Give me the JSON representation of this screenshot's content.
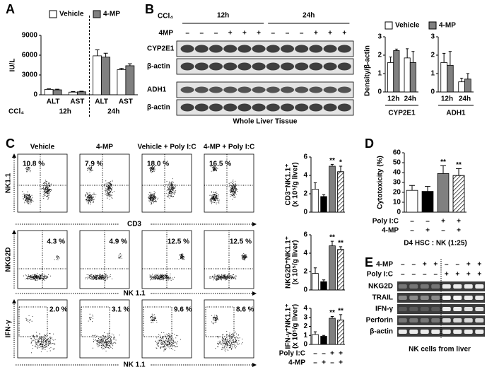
{
  "panels": [
    "A",
    "B",
    "C",
    "D",
    "E"
  ],
  "chart_data": [
    {
      "type": "bar",
      "y_label": "IU/L",
      "categories": [
        "ALT",
        "AST",
        "ALT",
        "AST"
      ],
      "group_labels": [
        "12h",
        "24h"
      ],
      "x_prefix": "CCl₄",
      "ylim": [
        0,
        9000
      ],
      "yticks": [
        0,
        3000,
        6000,
        9000
      ],
      "series": [
        {
          "name": "Vehicle",
          "color": "#ffffff",
          "values": [
            800,
            400,
            5900,
            3800
          ],
          "errors": [
            100,
            80,
            900,
            200
          ]
        },
        {
          "name": "4-MP",
          "color": "#808080",
          "values": [
            750,
            450,
            5700,
            4400
          ],
          "errors": [
            100,
            80,
            600,
            300
          ]
        }
      ]
    },
    {
      "type": "bar",
      "y_label": "Density/β-actin",
      "categories": [
        "12h",
        "24h"
      ],
      "x_label": "CYP2E1",
      "ylim": [
        0,
        3
      ],
      "yticks": [
        0,
        1,
        2,
        3
      ],
      "series": [
        {
          "name": "Vehicle",
          "color": "#ffffff",
          "values": [
            1.6,
            1.85
          ],
          "errors": [
            0.3,
            0.5
          ]
        },
        {
          "name": "4-MP",
          "color": "#808080",
          "values": [
            2.25,
            1.6
          ],
          "errors": [
            0.08,
            0.6
          ]
        }
      ]
    },
    {
      "type": "bar",
      "categories": [
        "12h",
        "24h"
      ],
      "x_label": "ADH1",
      "ylim": [
        0,
        3
      ],
      "yticks": [
        0,
        1,
        2,
        3
      ],
      "series": [
        {
          "color": "#ffffff",
          "values": [
            1.6,
            0.55
          ],
          "errors": [
            0.5,
            0.2
          ]
        },
        {
          "color": "#808080",
          "values": [
            1.45,
            0.7
          ],
          "errors": [
            0.75,
            0.3
          ]
        }
      ]
    },
    {
      "type": "bar",
      "y_label": [
        "CD3⁻NK1.1⁺",
        "(x 10⁵/g liver)"
      ],
      "ylim": [
        0,
        6
      ],
      "yticks": [
        0,
        2,
        4,
        6
      ],
      "values": [
        2.5,
        1.7,
        5.0,
        4.4
      ],
      "errors": [
        0.7,
        0.2,
        0.2,
        0.6
      ],
      "colors": [
        "#ffffff",
        "#000000",
        "#808080",
        "#ffffff"
      ],
      "hatched": [
        false,
        false,
        false,
        true
      ],
      "significance": [
        null,
        null,
        "**",
        "*"
      ]
    },
    {
      "type": "bar",
      "y_label": [
        "NKG2D⁺NK1.1⁺",
        "(x 10⁵/g liver)"
      ],
      "ylim": [
        0,
        6
      ],
      "yticks": [
        0,
        2,
        4,
        6
      ],
      "values": [
        1.8,
        0.9,
        4.8,
        4.4
      ],
      "errors": [
        0.6,
        0.2,
        0.5,
        0.3
      ],
      "colors": [
        "#ffffff",
        "#000000",
        "#808080",
        "#ffffff"
      ],
      "hatched": [
        false,
        false,
        false,
        true
      ],
      "significance": [
        null,
        null,
        "**",
        "**"
      ]
    },
    {
      "type": "bar",
      "y_label": [
        "IFN-γ⁺NK1.1⁺",
        "(x 10⁵/g liver)"
      ],
      "ylim": [
        0,
        4
      ],
      "yticks": [
        0,
        1,
        2,
        3,
        4
      ],
      "values": [
        1.1,
        0.9,
        2.9,
        2.7
      ],
      "errors": [
        0.3,
        0.1,
        0.2,
        0.6
      ],
      "colors": [
        "#ffffff",
        "#000000",
        "#808080",
        "#ffffff"
      ],
      "hatched": [
        false,
        false,
        false,
        true
      ],
      "significance": [
        null,
        null,
        "**",
        "**"
      ],
      "conditions": [
        {
          "label": "Poly I:C",
          "signs": [
            "–",
            "–",
            "+",
            "+"
          ]
        },
        {
          "label": "4-MP",
          "signs": [
            "–",
            "+",
            "–",
            "+"
          ]
        }
      ]
    },
    {
      "type": "bar",
      "y_label": "Cytotoxicity (%)",
      "ylim": [
        0,
        60
      ],
      "yticks": [
        0,
        10,
        20,
        30,
        40,
        50,
        60
      ],
      "values": [
        22,
        21,
        39,
        37
      ],
      "errors": [
        5,
        5,
        8,
        7
      ],
      "colors": [
        "#ffffff",
        "#000000",
        "#808080",
        "#ffffff"
      ],
      "hatched": [
        false,
        false,
        false,
        true
      ],
      "significance": [
        null,
        null,
        "**",
        "**"
      ],
      "conditions": [
        {
          "label": "Poly I:C",
          "signs": [
            "–",
            "–",
            "+",
            "+"
          ]
        },
        {
          "label": "4-MP",
          "signs": [
            "–",
            "+",
            "–",
            "+"
          ]
        }
      ],
      "x_label": "D4 HSC : NK (1:25)"
    }
  ],
  "blot": {
    "treatment_label": "CCl₄",
    "time_points": [
      "12h",
      "24h"
    ],
    "row_label": "4MP",
    "signs": [
      "–",
      "–",
      "–",
      "+",
      "+",
      "+",
      "–",
      "–",
      "–",
      "+",
      "+",
      "+"
    ],
    "bands": [
      "CYP2E1",
      "β-actin",
      "ADH1",
      "β-actin"
    ],
    "caption": "Whole Liver Tissue"
  },
  "flow": {
    "columns": [
      "Vehicle",
      "4-MP",
      "Vehicle + Poly I:C",
      "4-MP + Poly I:C"
    ],
    "rows": [
      {
        "y_label": "NK1.1",
        "x_label": "CD3",
        "percentages": [
          "10.8 %",
          "7.9 %",
          "18.0 %",
          "16.5 %"
        ]
      },
      {
        "y_label": "NKG2D",
        "x_label": "NK 1.1",
        "percentages": [
          "4.3 %",
          "4.9 %",
          "12.5 %",
          "12.5 %"
        ]
      },
      {
        "y_label": "IFN-γ",
        "x_label": "NK 1.1",
        "percentages": [
          "2.0 %",
          "3.1 %",
          "9.6 %",
          "8.6 %"
        ]
      }
    ]
  },
  "gel": {
    "conditions": [
      {
        "label": "4-MP",
        "signs": [
          "–",
          "–",
          "+",
          "+",
          "–",
          "–",
          "+",
          "+"
        ]
      },
      {
        "label": "Poly I:C",
        "signs": [
          "–",
          "–",
          "–",
          "–",
          "+",
          "+",
          "+",
          "+"
        ]
      }
    ],
    "bands": [
      "NKG2D",
      "TRAIL",
      "IFN-γ",
      "Perforin",
      "β-actin"
    ],
    "caption": "NK cells from liver"
  }
}
